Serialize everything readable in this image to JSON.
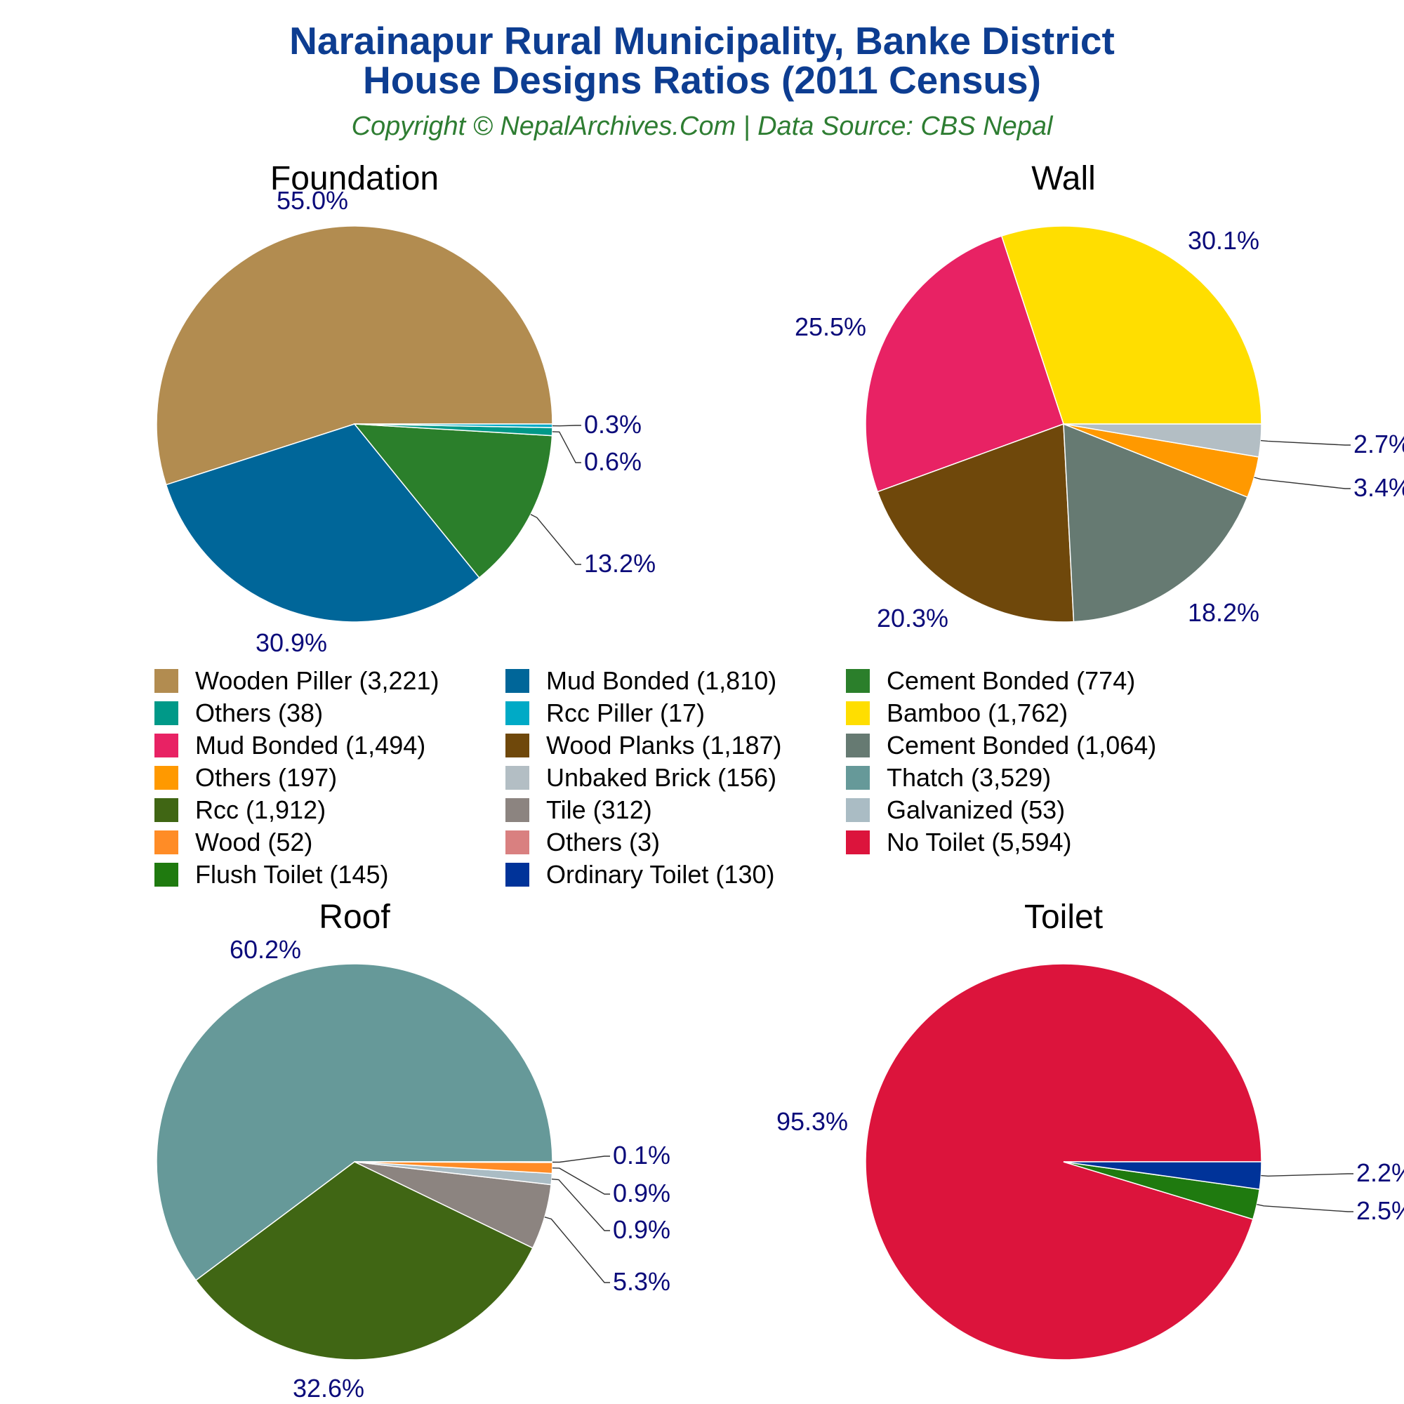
{
  "header": {
    "title_line1": "Narainapur Rural Municipality, Banke District",
    "title_line2": "House Designs Ratios (2011 Census)",
    "subtitle": "Copyright © NepalArchives.Com | Data Source: CBS Nepal"
  },
  "chart_data": [
    {
      "type": "pie",
      "title": "Foundation",
      "slices": [
        {
          "label": "Wooden Piller",
          "value": 3221,
          "percent_label": "55.0%",
          "color": "#b28c50"
        },
        {
          "label": "Mud Bonded",
          "value": 1810,
          "percent_label": "30.9%",
          "color": "#006699"
        },
        {
          "label": "Cement Bonded",
          "value": 774,
          "percent_label": "13.2%",
          "color": "#2b7f2b"
        },
        {
          "label": "Others",
          "value": 38,
          "percent_label": "0.6%",
          "color": "#009988"
        },
        {
          "label": "Rcc Piller",
          "value": 17,
          "percent_label": "0.3%",
          "color": "#00aac6"
        }
      ]
    },
    {
      "type": "pie",
      "title": "Wall",
      "slices": [
        {
          "label": "Bamboo",
          "value": 1762,
          "percent_label": "30.1%",
          "color": "#ffde00"
        },
        {
          "label": "Mud Bonded",
          "value": 1494,
          "percent_label": "25.5%",
          "color": "#e82264"
        },
        {
          "label": "Wood Planks",
          "value": 1187,
          "percent_label": "20.3%",
          "color": "#6f480b"
        },
        {
          "label": "Cement Bonded",
          "value": 1064,
          "percent_label": "18.2%",
          "color": "#667a72"
        },
        {
          "label": "Others",
          "value": 197,
          "percent_label": "3.4%",
          "color": "#ff9900"
        },
        {
          "label": "Unbaked Brick",
          "value": 156,
          "percent_label": "2.7%",
          "color": "#b3bec4"
        }
      ]
    },
    {
      "type": "pie",
      "title": "Roof",
      "slices": [
        {
          "label": "Thatch",
          "value": 3529,
          "percent_label": "60.2%",
          "color": "#669999"
        },
        {
          "label": "Rcc",
          "value": 1912,
          "percent_label": "32.6%",
          "color": "#406614"
        },
        {
          "label": "Tile",
          "value": 312,
          "percent_label": "5.3%",
          "color": "#8c8480"
        },
        {
          "label": "Galvanized",
          "value": 53,
          "percent_label": "0.9%",
          "color": "#aabcc4"
        },
        {
          "label": "Wood",
          "value": 52,
          "percent_label": "0.9%",
          "color": "#ff8c26"
        },
        {
          "label": "Others",
          "value": 3,
          "percent_label": "0.1%",
          "color": "#d98080"
        }
      ]
    },
    {
      "type": "pie",
      "title": "Toilet",
      "slices": [
        {
          "label": "No Toilet",
          "value": 5594,
          "percent_label": "95.3%",
          "color": "#dc143c"
        },
        {
          "label": "Flush Toilet",
          "value": 145,
          "percent_label": "2.5%",
          "color": "#1f7a0f"
        },
        {
          "label": "Ordinary Toilet",
          "value": 130,
          "percent_label": "2.2%",
          "color": "#003399"
        }
      ]
    }
  ],
  "legend": {
    "items": [
      {
        "text": "Wooden Piller (3,221)",
        "color": "#b28c50"
      },
      {
        "text": "Mud Bonded (1,810)",
        "color": "#006699"
      },
      {
        "text": "Cement Bonded (774)",
        "color": "#2b7f2b"
      },
      {
        "text": "Others (38)",
        "color": "#009988"
      },
      {
        "text": "Rcc Piller (17)",
        "color": "#00aac6"
      },
      {
        "text": "Bamboo (1,762)",
        "color": "#ffde00"
      },
      {
        "text": "Mud Bonded (1,494)",
        "color": "#e82264"
      },
      {
        "text": "Wood Planks (1,187)",
        "color": "#6f480b"
      },
      {
        "text": "Cement Bonded (1,064)",
        "color": "#667a72"
      },
      {
        "text": "Others (197)",
        "color": "#ff9900"
      },
      {
        "text": "Unbaked Brick (156)",
        "color": "#b3bec4"
      },
      {
        "text": "Thatch (3,529)",
        "color": "#669999"
      },
      {
        "text": "Rcc (1,912)",
        "color": "#406614"
      },
      {
        "text": "Tile (312)",
        "color": "#8c8480"
      },
      {
        "text": "Galvanized (53)",
        "color": "#aabcc4"
      },
      {
        "text": "Wood (52)",
        "color": "#ff8c26"
      },
      {
        "text": "Others (3)",
        "color": "#d98080"
      },
      {
        "text": "No Toilet (5,594)",
        "color": "#dc143c"
      },
      {
        "text": "Flush Toilet (145)",
        "color": "#1f7a0f"
      },
      {
        "text": "Ordinary Toilet (130)",
        "color": "#003399"
      }
    ]
  }
}
